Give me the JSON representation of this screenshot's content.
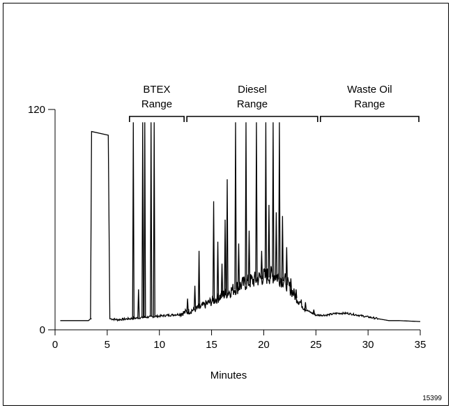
{
  "chart_data": {
    "type": "line",
    "title": "",
    "xlabel": "Minutes",
    "ylabel": "",
    "xlim": [
      0,
      35
    ],
    "ylim": [
      0,
      120
    ],
    "x_ticks": [
      "0",
      "5",
      "10",
      "15",
      "20",
      "25",
      "30",
      "35"
    ],
    "y_ticks": [
      "0",
      "120"
    ],
    "grid": false,
    "ranges": [
      {
        "label_line1": "BTEX",
        "label_line2": "Range",
        "x_start": 7.0,
        "x_end": 12.5
      },
      {
        "label_line1": "Diesel",
        "label_line2": "Range",
        "x_start": 12.5,
        "x_end": 25.3
      },
      {
        "label_line1": "Waste Oil",
        "label_line2": "Range",
        "x_start": 25.3,
        "x_end": 35.0
      }
    ],
    "baseline": [
      [
        0.5,
        5
      ],
      [
        3.2,
        5
      ],
      [
        3.4,
        6
      ],
      [
        5.3,
        6
      ],
      [
        6,
        5.5
      ],
      [
        7,
        6
      ],
      [
        8,
        6.5
      ],
      [
        9,
        7
      ],
      [
        10,
        7.5
      ],
      [
        11,
        8
      ],
      [
        12,
        8.5
      ],
      [
        13,
        10
      ],
      [
        14,
        12
      ],
      [
        15,
        15
      ],
      [
        16,
        18
      ],
      [
        17,
        21
      ],
      [
        18,
        24
      ],
      [
        19,
        26
      ],
      [
        20,
        28
      ],
      [
        21,
        29
      ],
      [
        22,
        26
      ],
      [
        23,
        18
      ],
      [
        24,
        11
      ],
      [
        25,
        8
      ],
      [
        26,
        8
      ],
      [
        27,
        9
      ],
      [
        28,
        9
      ],
      [
        29,
        8
      ],
      [
        30,
        7
      ],
      [
        31,
        6
      ],
      [
        32,
        5
      ],
      [
        33,
        5
      ],
      [
        35,
        4.5
      ]
    ],
    "plateau": {
      "x_start": 3.5,
      "x_end": 5.1,
      "y": 108
    },
    "peaks": [
      {
        "x": 7.5,
        "y": 113
      },
      {
        "x": 8.0,
        "y": 22
      },
      {
        "x": 8.4,
        "y": 113
      },
      {
        "x": 8.6,
        "y": 113
      },
      {
        "x": 9.2,
        "y": 113
      },
      {
        "x": 9.5,
        "y": 113
      },
      {
        "x": 12.7,
        "y": 17
      },
      {
        "x": 13.4,
        "y": 24
      },
      {
        "x": 13.8,
        "y": 43
      },
      {
        "x": 15.2,
        "y": 70
      },
      {
        "x": 15.6,
        "y": 48
      },
      {
        "x": 16.0,
        "y": 36
      },
      {
        "x": 16.3,
        "y": 60
      },
      {
        "x": 16.5,
        "y": 82
      },
      {
        "x": 17.3,
        "y": 113
      },
      {
        "x": 17.6,
        "y": 47
      },
      {
        "x": 18.3,
        "y": 113
      },
      {
        "x": 18.6,
        "y": 54
      },
      {
        "x": 19.3,
        "y": 113
      },
      {
        "x": 19.8,
        "y": 43
      },
      {
        "x": 20.2,
        "y": 113
      },
      {
        "x": 20.5,
        "y": 68
      },
      {
        "x": 20.9,
        "y": 113
      },
      {
        "x": 21.2,
        "y": 64
      },
      {
        "x": 21.5,
        "y": 113
      },
      {
        "x": 21.8,
        "y": 62
      },
      {
        "x": 22.2,
        "y": 45
      },
      {
        "x": 22.6,
        "y": 28
      },
      {
        "x": 23.1,
        "y": 22
      },
      {
        "x": 24.0,
        "y": 15
      },
      {
        "x": 24.8,
        "y": 11
      }
    ]
  },
  "footer": {
    "figure_id": "15399"
  }
}
